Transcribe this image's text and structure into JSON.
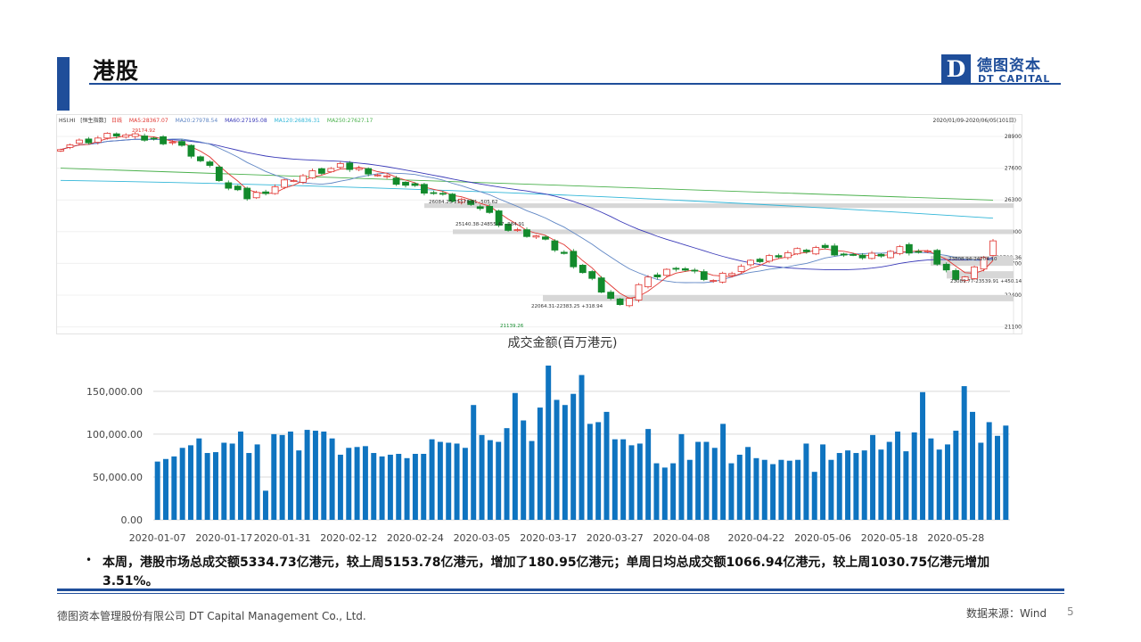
{
  "header": {
    "title": "港股",
    "logo_mark": "D",
    "logo_cn": "德图资本",
    "logo_en": "DT CAPITAL"
  },
  "kline": {
    "code": "HSI.HI",
    "bracket": "[恒生指数]",
    "period": "日线",
    "ma5": "MA5:28367.07",
    "ma20": "MA20:27978.54",
    "ma60": "MA60:27195.08",
    "ma120": "MA120:26836.31",
    "ma250": "MA250:27627.17",
    "range": "2020/01/09-2020/06/05(101日)",
    "colors": {
      "up": "#e0342f",
      "down": "#138a2c",
      "ma5": "#e0342f",
      "ma20": "#5f86c4",
      "ma60": "#3a3ab8",
      "ma120": "#31b6d8",
      "ma250": "#49b04b"
    },
    "y_ticks": [
      "28900",
      "27600",
      "26300",
      "25000",
      "23700",
      "22400",
      "21100"
    ],
    "y_right_extra": "23708.36",
    "annotations": [
      {
        "key": "high",
        "text": "29174.92"
      },
      {
        "key": "gap1",
        "text": "26084.23-25578.61 -505.62"
      },
      {
        "key": "gap2",
        "text": "25140.38-24855.47 -284.91"
      },
      {
        "key": "gap3",
        "text": "23808.94-24204.10"
      },
      {
        "key": "gap4",
        "text": "22064.31-22383.25 +318.94"
      },
      {
        "key": "gap5",
        "text": "23089.77-23539.91 +450.14"
      },
      {
        "key": "low",
        "text": "21139.26"
      }
    ]
  },
  "chart_data": {
    "type": "bar",
    "title": "成交金额(百万港元)",
    "ylim": [
      0,
      180000
    ],
    "y_ticks": [
      "0.00",
      "50,000.00",
      "100,000.00",
      "150,000.00"
    ],
    "y_tick_values": [
      0,
      50000,
      100000,
      150000
    ],
    "x_tick_labels": [
      "2020-01-07",
      "2020-01-17",
      "2020-01-31",
      "2020-02-12",
      "2020-02-24",
      "2020-03-05",
      "2020-03-17",
      "2020-03-27",
      "2020-04-08",
      "2020-04-22",
      "2020-05-06",
      "2020-05-18",
      "2020-05-28"
    ],
    "x_tick_index": [
      0,
      8,
      15,
      23,
      31,
      39,
      47,
      55,
      63,
      72,
      80,
      88,
      96
    ],
    "bar_color": "#0f74c0",
    "values": [
      68000,
      71000,
      74000,
      84000,
      87000,
      95000,
      78000,
      79000,
      90000,
      89000,
      103000,
      78000,
      88000,
      34000,
      100000,
      99000,
      103000,
      81000,
      105000,
      104000,
      103000,
      95000,
      76000,
      84000,
      85000,
      86000,
      78000,
      74000,
      76000,
      77000,
      72000,
      77000,
      77000,
      94000,
      91000,
      90000,
      89000,
      84000,
      134000,
      99000,
      93000,
      91000,
      107000,
      148000,
      116000,
      92000,
      131000,
      180000,
      140000,
      134000,
      147000,
      169000,
      112000,
      114000,
      126000,
      94000,
      94000,
      87000,
      89000,
      106000,
      66000,
      61000,
      66000,
      100000,
      70000,
      91000,
      91000,
      84000,
      112000,
      66000,
      76000,
      85000,
      72000,
      70000,
      65000,
      70000,
      69000,
      70000,
      89000,
      56000,
      88000,
      70000,
      78000,
      81000,
      78000,
      81000,
      99000,
      82000,
      91000,
      103000,
      80000,
      102000,
      149000,
      95000,
      82000,
      88000,
      104000,
      156000,
      126000,
      90000,
      114000,
      98000,
      110000
    ]
  },
  "summary": {
    "bullet": "•",
    "text": "本周，港股市场总成交额5334.73亿港元，较上周5153.78亿港元，增加了180.95亿港元；单周日均总成交额1066.94亿港元，较上周1030.75亿港元增加3.51%。"
  },
  "footer": {
    "company": "德图资本管理股份有限公司  DT Capital Management  Co., Ltd.",
    "source": "数据来源：Wind",
    "page": "5"
  }
}
